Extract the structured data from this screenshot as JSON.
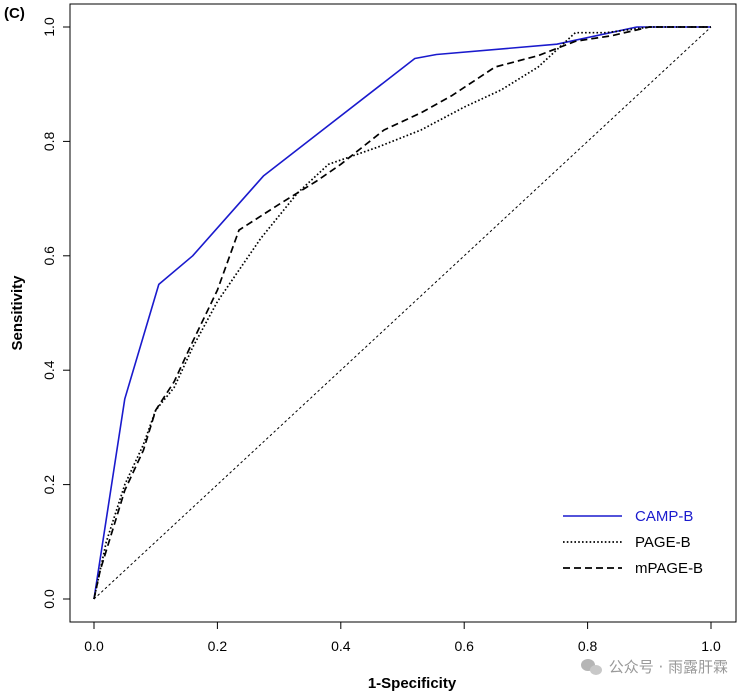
{
  "panel_label": "(C)",
  "watermark": {
    "text": "公众号 · 雨露肝霖",
    "icon": "wechat-icon"
  },
  "chart_data": {
    "type": "line",
    "title": "",
    "xlabel": "1-Specificity",
    "ylabel": "Sensitivity",
    "xlim": [
      0,
      1
    ],
    "ylim": [
      0,
      1
    ],
    "xticks": [
      "0.0",
      "0.2",
      "0.4",
      "0.6",
      "0.8",
      "1.0"
    ],
    "yticks": [
      "0.0",
      "0.2",
      "0.4",
      "0.6",
      "0.8",
      "1.0"
    ],
    "grid": false,
    "legend_position": "bottom-right",
    "reference_line": {
      "x": [
        0,
        1
      ],
      "y": [
        0,
        1
      ],
      "style": "dotted",
      "color": "#000000"
    },
    "series": [
      {
        "name": "CAMP-B",
        "color": "#1a1acd",
        "style": "solid",
        "x": [
          0.0,
          0.05,
          0.105,
          0.16,
          0.275,
          0.52,
          0.555,
          0.75,
          0.88,
          1.0
        ],
        "y": [
          0.0,
          0.35,
          0.55,
          0.6,
          0.74,
          0.945,
          0.952,
          0.97,
          1.0,
          1.0
        ]
      },
      {
        "name": "PAGE-B",
        "color": "#000000",
        "style": "dotted",
        "x": [
          0.0,
          0.02,
          0.05,
          0.08,
          0.1,
          0.13,
          0.16,
          0.2,
          0.27,
          0.33,
          0.38,
          0.46,
          0.53,
          0.6,
          0.66,
          0.72,
          0.78,
          0.83,
          0.9,
          1.0
        ],
        "y": [
          0.0,
          0.1,
          0.2,
          0.27,
          0.33,
          0.37,
          0.44,
          0.52,
          0.63,
          0.71,
          0.76,
          0.79,
          0.82,
          0.86,
          0.89,
          0.93,
          0.99,
          0.99,
          1.0,
          1.0
        ]
      },
      {
        "name": "mPAGE-B",
        "color": "#000000",
        "style": "dashed",
        "x": [
          0.0,
          0.01,
          0.03,
          0.05,
          0.08,
          0.1,
          0.13,
          0.16,
          0.2,
          0.235,
          0.3,
          0.36,
          0.4,
          0.47,
          0.53,
          0.58,
          0.65,
          0.72,
          0.78,
          0.84,
          0.9,
          1.0
        ],
        "y": [
          0.0,
          0.05,
          0.12,
          0.19,
          0.26,
          0.33,
          0.38,
          0.45,
          0.54,
          0.645,
          0.69,
          0.73,
          0.76,
          0.82,
          0.85,
          0.88,
          0.93,
          0.95,
          0.975,
          0.985,
          1.0,
          1.0
        ]
      }
    ]
  }
}
